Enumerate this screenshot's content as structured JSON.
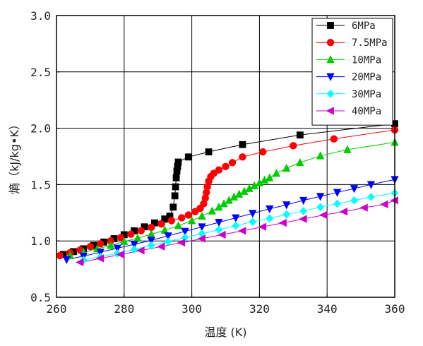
{
  "chart_data": {
    "type": "line",
    "xlabel": "温度 (K)",
    "ylabel": "熵（kJ/kg•K）",
    "xlim": [
      260,
      360
    ],
    "ylim": [
      0.5,
      3.0
    ],
    "x_ticks": [
      "260",
      "280",
      "300",
      "320",
      "340",
      "360"
    ],
    "y_ticks": [
      "0.5",
      "1.0",
      "1.5",
      "2.0",
      "2.5",
      "3.0"
    ],
    "grid": true,
    "legend_position": "top-right",
    "series": [
      {
        "name": "6MPa",
        "color": "#000000",
        "marker": "square",
        "x": [
          262,
          265,
          268,
          271,
          274,
          277,
          280,
          283,
          286,
          289,
          292,
          293.5,
          294.5,
          295,
          295.2,
          295.4,
          295.6,
          295.8,
          296,
          299,
          305,
          315,
          332,
          360
        ],
        "y": [
          0.88,
          0.905,
          0.93,
          0.96,
          0.99,
          1.02,
          1.055,
          1.09,
          1.125,
          1.16,
          1.195,
          1.22,
          1.3,
          1.4,
          1.48,
          1.56,
          1.62,
          1.66,
          1.7,
          1.745,
          1.79,
          1.855,
          1.94,
          2.04
        ]
      },
      {
        "name": "7.5MPa",
        "color": "#ff0000",
        "marker": "circle",
        "x": [
          261,
          264,
          267,
          270,
          273,
          276,
          279,
          282,
          285,
          288,
          291,
          294,
          297,
          299,
          301,
          302.5,
          303.5,
          304,
          304.3,
          304.6,
          305,
          305.6,
          306.5,
          308,
          310,
          312,
          315,
          321,
          330,
          342,
          360
        ],
        "y": [
          0.87,
          0.895,
          0.92,
          0.95,
          0.975,
          1.0,
          1.03,
          1.06,
          1.09,
          1.12,
          1.15,
          1.18,
          1.205,
          1.23,
          1.26,
          1.29,
          1.33,
          1.38,
          1.43,
          1.48,
          1.53,
          1.57,
          1.6,
          1.63,
          1.66,
          1.695,
          1.745,
          1.79,
          1.845,
          1.905,
          1.985
        ]
      },
      {
        "name": "10MPa",
        "color": "#00cc00",
        "marker": "triangle-up",
        "x": [
          264,
          268,
          272,
          276,
          280,
          284,
          288,
          292,
          296,
          300,
          303,
          306,
          308,
          309.5,
          311,
          312.5,
          314,
          315.5,
          317,
          318.5,
          320,
          321.5,
          323,
          325,
          328,
          332,
          338,
          346,
          360
        ],
        "y": [
          0.87,
          0.9,
          0.93,
          0.96,
          0.995,
          1.025,
          1.06,
          1.095,
          1.135,
          1.18,
          1.22,
          1.265,
          1.3,
          1.33,
          1.36,
          1.39,
          1.415,
          1.44,
          1.465,
          1.49,
          1.515,
          1.54,
          1.56,
          1.6,
          1.645,
          1.695,
          1.755,
          1.81,
          1.875
        ]
      },
      {
        "name": "20MPa",
        "color": "#0000ff",
        "marker": "triangle-down",
        "x": [
          263,
          268,
          273,
          278,
          283,
          288,
          293,
          298,
          303,
          308,
          313,
          318,
          323,
          328,
          333,
          338,
          343,
          348,
          353,
          360
        ],
        "y": [
          0.835,
          0.865,
          0.9,
          0.935,
          0.97,
          1.005,
          1.045,
          1.085,
          1.125,
          1.165,
          1.205,
          1.245,
          1.285,
          1.32,
          1.36,
          1.395,
          1.43,
          1.465,
          1.5,
          1.545
        ]
      },
      {
        "name": "30MPa",
        "color": "#00ffff",
        "marker": "diamond",
        "x": [
          268,
          273,
          278,
          283,
          288,
          293,
          298,
          303,
          308,
          313,
          318,
          323,
          328,
          333,
          338,
          343,
          348,
          353,
          360
        ],
        "y": [
          0.83,
          0.86,
          0.89,
          0.925,
          0.96,
          0.995,
          1.03,
          1.065,
          1.1,
          1.135,
          1.17,
          1.2,
          1.235,
          1.265,
          1.3,
          1.33,
          1.36,
          1.39,
          1.425
        ]
      },
      {
        "name": "40MPa",
        "color": "#cc00cc",
        "marker": "triangle-left",
        "x": [
          267,
          273,
          279,
          285,
          291,
          297,
          303,
          309,
          315,
          321,
          327,
          333,
          339,
          345,
          351,
          357,
          360
        ],
        "y": [
          0.81,
          0.845,
          0.88,
          0.915,
          0.95,
          0.985,
          1.02,
          1.055,
          1.09,
          1.125,
          1.16,
          1.195,
          1.23,
          1.26,
          1.295,
          1.325,
          1.36
        ]
      }
    ]
  }
}
